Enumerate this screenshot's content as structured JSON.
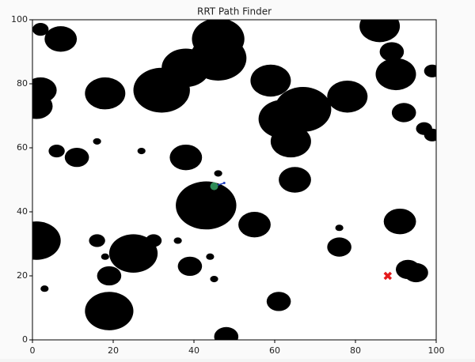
{
  "chart_data": {
    "type": "obstacle-map",
    "title": "RRT Path Finder",
    "xlim": [
      0,
      100
    ],
    "ylim": [
      0,
      100
    ],
    "xticks": [
      0,
      20,
      40,
      60,
      80,
      100
    ],
    "yticks": [
      0,
      20,
      40,
      60,
      80,
      100
    ],
    "obstacles": {
      "color": "#000000",
      "x": [
        2,
        7,
        46,
        46,
        38,
        32,
        18,
        2,
        1,
        59,
        67,
        62,
        64,
        78,
        86,
        89,
        90,
        99,
        92,
        97,
        99,
        6,
        11,
        16,
        27,
        38,
        46,
        65,
        43,
        55,
        91,
        76,
        76,
        1,
        16,
        30,
        36,
        25,
        18,
        39,
        44,
        19,
        45,
        3,
        93,
        95,
        61,
        19,
        48
      ],
      "y": [
        97,
        94,
        94,
        88,
        85,
        78,
        77,
        78,
        73,
        81,
        72,
        69,
        62,
        76,
        98,
        90,
        83,
        84,
        71,
        66,
        64,
        59,
        57,
        62,
        59,
        57,
        52,
        50,
        42,
        36,
        37,
        35,
        29,
        31,
        31,
        31,
        31,
        27,
        26,
        23,
        26,
        20,
        19,
        16,
        22,
        21,
        12,
        9,
        1
      ],
      "r": [
        2,
        4,
        6.5,
        7,
        6,
        7,
        5,
        4,
        4,
        5,
        7,
        6,
        5,
        5,
        5,
        3,
        5,
        2,
        3,
        2,
        2,
        2,
        3,
        1,
        1,
        4,
        1,
        4,
        7.5,
        4,
        4,
        1,
        3,
        6,
        2,
        2,
        1,
        6,
        1,
        3,
        1,
        3,
        1,
        1,
        3,
        3,
        3,
        6,
        3
      ]
    },
    "tree": {
      "color": "#1f3fbf",
      "x": [
        45,
        47.5
      ],
      "y": [
        48,
        49
      ]
    },
    "start": {
      "color": "#2e8b57",
      "x": 45,
      "y": 48
    },
    "goal": {
      "color": "#e41a1c",
      "x": 88,
      "y": 20
    }
  }
}
